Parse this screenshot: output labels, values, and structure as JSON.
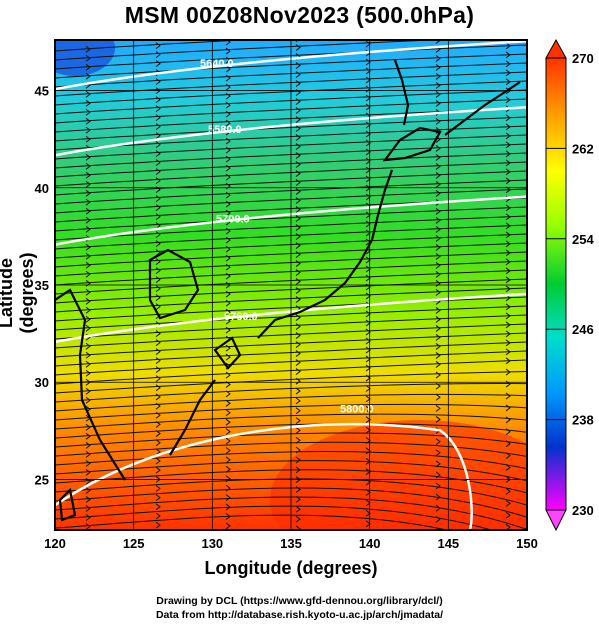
{
  "title": "MSM 00Z08Nov2023 (500.0hPa)",
  "axes": {
    "x_label": "Longitude (degrees)",
    "y_label": "Latitude  (degrees)",
    "x_ticks": [
      "120",
      "125",
      "130",
      "135",
      "140",
      "145",
      "150"
    ],
    "y_ticks": [
      "25",
      "30",
      "35",
      "40",
      "45"
    ],
    "x_range": [
      120,
      150
    ],
    "y_range": [
      22.4,
      47.6
    ]
  },
  "colorbar": {
    "labels": [
      "270",
      "262",
      "254",
      "246",
      "238",
      "230"
    ],
    "range": [
      230,
      270
    ],
    "colors": [
      "#ff3300",
      "#ff9900",
      "#ffff00",
      "#99ff00",
      "#00cc33",
      "#00ddcc",
      "#0099ff",
      "#0033cc",
      "#ff00ff"
    ]
  },
  "contours": [
    {
      "label": "5640.0",
      "lat": 46.0
    },
    {
      "label": "5580.0",
      "lat": 42.6
    },
    {
      "label": "5700.0",
      "lat": 38.0
    },
    {
      "label": "5760.0",
      "lat": 33.0
    },
    {
      "label": "5800.0",
      "lat": 26.5
    }
  ],
  "credits": {
    "line1": "Drawing by DCL (https://www.gfd-dennou.org/library/dcl/)",
    "line2": "Data from http://database.rish.kyoto-u.ac.jp/arch/jmadata/"
  }
}
